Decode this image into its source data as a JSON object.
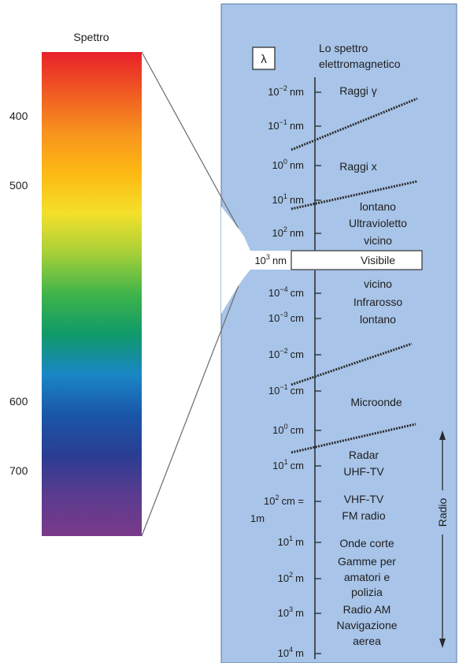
{
  "spectrum_bar": {
    "title": "Spettro",
    "ticks": [
      "400",
      "500",
      "600",
      "700"
    ],
    "tick_values": [
      400,
      500,
      600,
      700
    ],
    "gradient_colors": [
      "#e8202a",
      "#f05a22",
      "#f7931e",
      "#fdb913",
      "#f4e02a",
      "#a6cf39",
      "#3fb44a",
      "#0f9a6a",
      "#1a86c6",
      "#1a56a8",
      "#2a3d92",
      "#5b3b8e",
      "#7a3a8a"
    ]
  },
  "panel": {
    "background_color": "#a8c4e8",
    "lambda_symbol": "λ",
    "title_line1": "Lo spettro",
    "title_line2": "elettromagnetico",
    "visible_label": "Visibile",
    "wavelengths": [
      {
        "base": "10",
        "exp": "−2",
        "unit": "nm"
      },
      {
        "base": "10",
        "exp": "−1",
        "unit": "nm"
      },
      {
        "base": "10",
        "exp": "0",
        "unit": "nm"
      },
      {
        "base": "10",
        "exp": "1",
        "unit": "nm"
      },
      {
        "base": "10",
        "exp": "2",
        "unit": "nm"
      },
      {
        "base": "10",
        "exp": "3",
        "unit": "nm"
      },
      {
        "base": "10",
        "exp": "−4",
        "unit": "cm"
      },
      {
        "base": "10",
        "exp": "−3",
        "unit": "cm"
      },
      {
        "base": "10",
        "exp": "−2",
        "unit": "cm"
      },
      {
        "base": "10",
        "exp": "−1",
        "unit": "cm"
      },
      {
        "base": "10",
        "exp": "0",
        "unit": "cm"
      },
      {
        "base": "10",
        "exp": "1",
        "unit": "cm"
      },
      {
        "base": "10",
        "exp": "2",
        "unit": "cm ="
      },
      {
        "base": "10",
        "exp": "1",
        "unit": "m"
      },
      {
        "base": "10",
        "exp": "2",
        "unit": "m"
      },
      {
        "base": "10",
        "exp": "3",
        "unit": "m"
      },
      {
        "base": "10",
        "exp": "4",
        "unit": "m"
      }
    ],
    "one_meter_label": "1m",
    "regions": [
      "Raggi γ",
      "Raggi x",
      "lontano",
      "Ultravioletto",
      "vicino",
      "vicino",
      "Infrarosso",
      "lontano",
      "Microonde",
      "Radar",
      "UHF-TV",
      "VHF-TV",
      "FM radio",
      "Onde corte",
      "Gamme per",
      "amatori e",
      "polizia",
      "Radio AM",
      "Navigazione",
      "aerea"
    ],
    "radio_label": "Radio"
  }
}
